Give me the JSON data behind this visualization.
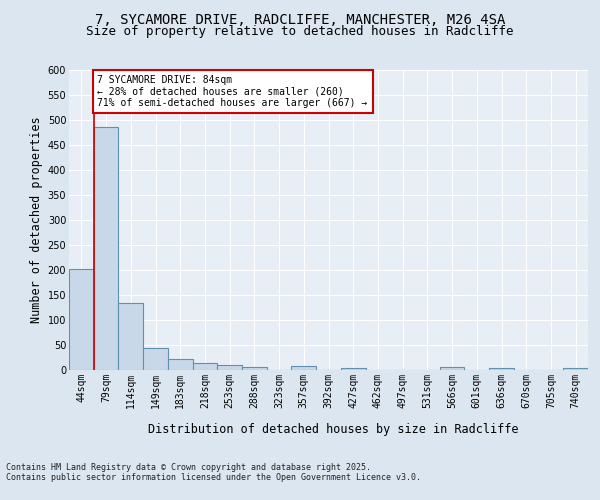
{
  "title1": "7, SYCAMORE DRIVE, RADCLIFFE, MANCHESTER, M26 4SA",
  "title2": "Size of property relative to detached houses in Radcliffe",
  "xlabel": "Distribution of detached houses by size in Radcliffe",
  "ylabel": "Number of detached properties",
  "categories": [
    "44sqm",
    "79sqm",
    "114sqm",
    "149sqm",
    "183sqm",
    "218sqm",
    "253sqm",
    "288sqm",
    "323sqm",
    "357sqm",
    "392sqm",
    "427sqm",
    "462sqm",
    "497sqm",
    "531sqm",
    "566sqm",
    "601sqm",
    "636sqm",
    "670sqm",
    "705sqm",
    "740sqm"
  ],
  "values": [
    203,
    487,
    135,
    45,
    22,
    14,
    11,
    6,
    1,
    9,
    1,
    5,
    1,
    1,
    1,
    7,
    1,
    4,
    1,
    1,
    4
  ],
  "bar_color": "#c8d8e8",
  "bar_edge_color": "#6090b0",
  "bar_linewidth": 0.8,
  "vline_x_index": 1,
  "vline_color": "#cc0000",
  "annotation_text": "7 SYCAMORE DRIVE: 84sqm\n← 28% of detached houses are smaller (260)\n71% of semi-detached houses are larger (667) →",
  "annotation_box_color": "#cc0000",
  "ylim": [
    0,
    600
  ],
  "yticks": [
    0,
    50,
    100,
    150,
    200,
    250,
    300,
    350,
    400,
    450,
    500,
    550,
    600
  ],
  "bg_color": "#dce6f0",
  "plot_bg_color": "#e8eef6",
  "grid_color": "#ffffff",
  "footnote": "Contains HM Land Registry data © Crown copyright and database right 2025.\nContains public sector information licensed under the Open Government Licence v3.0.",
  "title_fontsize": 10,
  "subtitle_fontsize": 9,
  "axis_label_fontsize": 8.5,
  "tick_fontsize": 7,
  "annot_fontsize": 7,
  "footnote_fontsize": 6
}
